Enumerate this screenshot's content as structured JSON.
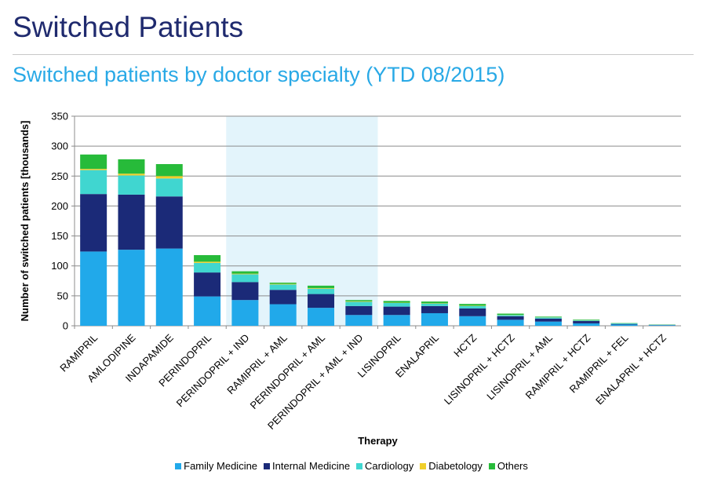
{
  "page": {
    "title": "Switched Patients",
    "subtitle": "Switched patients by doctor specialty (YTD 08/2015)"
  },
  "chart_data": {
    "type": "bar",
    "stacked": true,
    "title": "",
    "xlabel": "Therapy",
    "ylabel": "Number of switched patients [thousands]",
    "ylim": [
      0,
      350
    ],
    "yticks": [
      0,
      50,
      100,
      150,
      200,
      250,
      300,
      350
    ],
    "grid": true,
    "legend_position": "bottom",
    "highlight_range": [
      "PERINDOPRIL + IND",
      "PERINDOPRIL + AML + IND"
    ],
    "categories": [
      "RAMIPRIL",
      "AMLODIPINE",
      "INDAPAMIDE",
      "PERINDOPRIL",
      "PERINDOPRIL + IND",
      "RAMIPRIL + AML",
      "PERINDOPRIL + AML",
      "PERINDOPRIL + AML + IND",
      "LISINOPRIL",
      "ENALAPRIL",
      "HCTZ",
      "LISINOPRIL + HCTZ",
      "LISINOPRIL + AML",
      "RAMIPRIL + HCTZ",
      "RAMIPRIL + FEL",
      "ENALAPRIL + HCTZ"
    ],
    "series": [
      {
        "name": "Family Medicine",
        "color": "#21a9ea",
        "values": [
          124,
          127,
          129,
          49,
          43,
          36,
          30,
          18,
          18,
          21,
          16,
          10,
          7,
          4,
          2,
          1
        ]
      },
      {
        "name": "Internal Medicine",
        "color": "#1b2a78",
        "values": [
          96,
          92,
          87,
          40,
          30,
          24,
          23,
          15,
          14,
          12,
          13,
          6,
          5,
          4,
          1,
          0.5
        ]
      },
      {
        "name": "Cardiology",
        "color": "#40d6d0",
        "values": [
          40,
          32,
          30,
          16,
          13,
          9,
          9,
          7,
          6,
          4,
          4,
          2,
          2,
          1,
          1,
          0.3
        ]
      },
      {
        "name": "Diabetology",
        "color": "#f0cf2b",
        "values": [
          2,
          3,
          4,
          2,
          1,
          1,
          1,
          1,
          0.5,
          0.5,
          0.5,
          0.3,
          0.3,
          0.2,
          0.1,
          0.1
        ]
      },
      {
        "name": "Others",
        "color": "#27bb3a",
        "values": [
          24,
          24,
          20,
          11,
          4,
          2,
          4,
          2,
          3,
          3,
          3,
          2,
          1,
          1,
          0.5,
          0.3
        ]
      }
    ]
  }
}
